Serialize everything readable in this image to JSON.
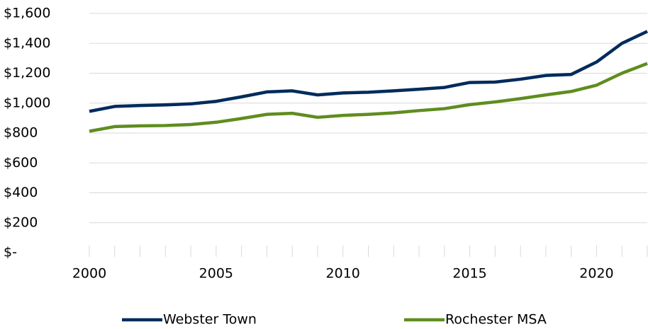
{
  "chart_data": {
    "type": "line",
    "x": [
      2000,
      2001,
      2002,
      2003,
      2004,
      2005,
      2006,
      2007,
      2008,
      2009,
      2010,
      2011,
      2012,
      2013,
      2014,
      2015,
      2016,
      2017,
      2018,
      2019,
      2020,
      2021,
      2022
    ],
    "series": [
      {
        "name": "Webster Town",
        "color": "#002b5c",
        "values": [
          945,
          978,
          984,
          988,
          995,
          1012,
          1042,
          1075,
          1082,
          1055,
          1068,
          1073,
          1082,
          1093,
          1105,
          1138,
          1141,
          1160,
          1185,
          1192,
          1275,
          1400,
          1480
        ]
      },
      {
        "name": "Rochester MSA",
        "color": "#5f8d1f",
        "values": [
          812,
          843,
          848,
          850,
          857,
          872,
          897,
          925,
          932,
          905,
          918,
          925,
          935,
          950,
          963,
          990,
          1008,
          1030,
          1055,
          1078,
          1120,
          1200,
          1265
        ]
      }
    ],
    "xlim": [
      2000,
      2022
    ],
    "xticks": [
      2000,
      2005,
      2010,
      2015,
      2020
    ],
    "ylim": [
      0,
      1600
    ],
    "yticks": [
      {
        "value": 0,
        "label": "$-"
      },
      {
        "value": 200,
        "label": "$200"
      },
      {
        "value": 400,
        "label": "$400"
      },
      {
        "value": 600,
        "label": "$600"
      },
      {
        "value": 800,
        "label": "$800"
      },
      {
        "value": 1000,
        "label": "$1,000"
      },
      {
        "value": 1200,
        "label": "$1,200"
      },
      {
        "value": 1400,
        "label": "$1,400"
      },
      {
        "value": 1600,
        "label": "$1,600"
      }
    ],
    "grid": true,
    "legend": "bottom"
  }
}
